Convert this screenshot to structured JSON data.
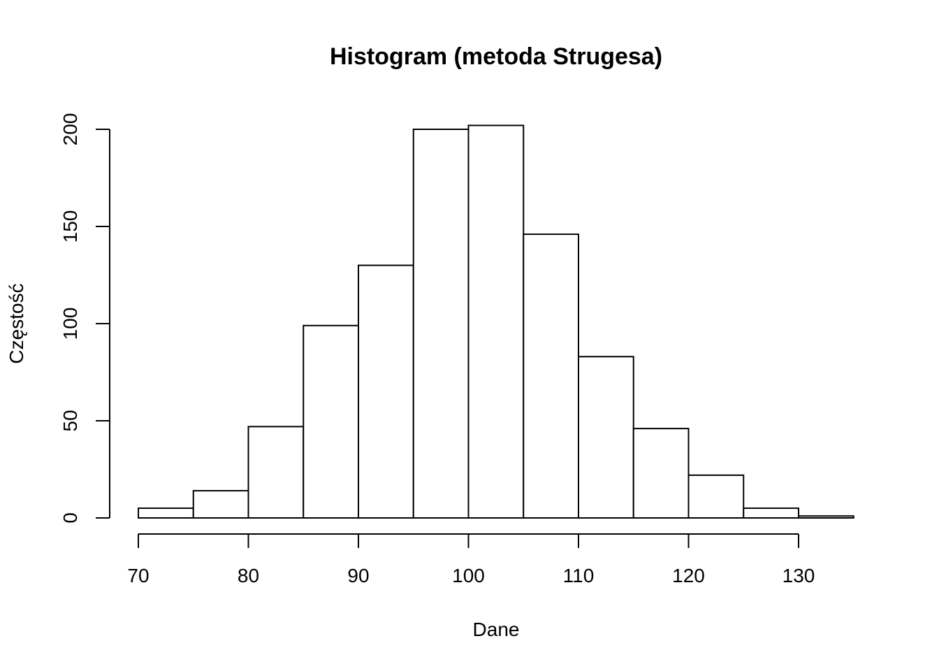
{
  "chart_data": {
    "type": "bar",
    "title": "Histogram (metoda Strugesa)",
    "xlabel": "Dane",
    "ylabel": "Częstość",
    "bins": [
      {
        "start": 70,
        "end": 75,
        "count": 5
      },
      {
        "start": 75,
        "end": 80,
        "count": 14
      },
      {
        "start": 80,
        "end": 85,
        "count": 47
      },
      {
        "start": 85,
        "end": 90,
        "count": 99
      },
      {
        "start": 90,
        "end": 95,
        "count": 130
      },
      {
        "start": 95,
        "end": 100,
        "count": 200
      },
      {
        "start": 100,
        "end": 105,
        "count": 202
      },
      {
        "start": 105,
        "end": 110,
        "count": 146
      },
      {
        "start": 110,
        "end": 115,
        "count": 83
      },
      {
        "start": 115,
        "end": 120,
        "count": 46
      },
      {
        "start": 120,
        "end": 125,
        "count": 22
      },
      {
        "start": 125,
        "end": 130,
        "count": 5
      },
      {
        "start": 130,
        "end": 135,
        "count": 1
      }
    ],
    "x_ticks": [
      70,
      80,
      90,
      100,
      110,
      120,
      130
    ],
    "y_ticks": [
      0,
      50,
      100,
      150,
      200
    ],
    "xlim": [
      70,
      135
    ],
    "ylim": [
      0,
      200
    ],
    "grid": false,
    "bar_fill": "#ffffff",
    "bar_stroke": "#000000"
  }
}
